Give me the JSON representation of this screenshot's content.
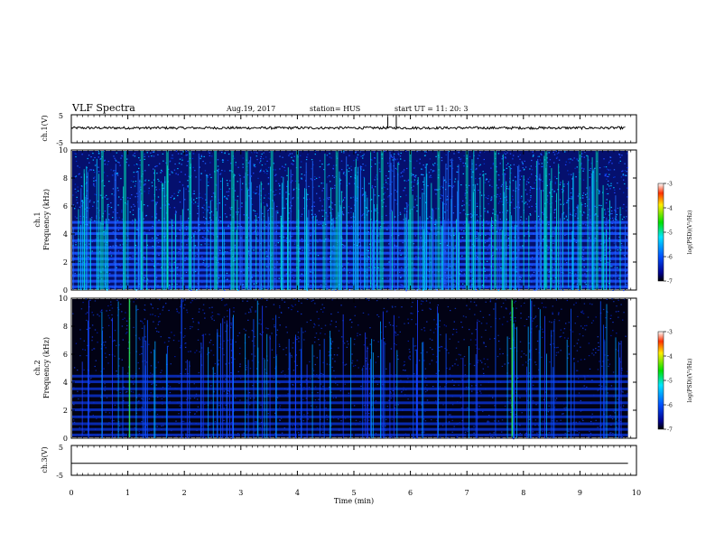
{
  "header": {
    "title": "VLF Spectra",
    "date": "Aug.19, 2017",
    "station": "station= HUS",
    "start": "start  UT =   11: 20: 3"
  },
  "chart_data": [
    {
      "type": "line",
      "name": "ch1-waveform",
      "ylabel": "ch.1(V)",
      "ylim": [
        -5,
        5
      ],
      "yticks": [
        "5",
        "-5"
      ],
      "xlim": [
        0,
        10
      ],
      "baseline": 0.3,
      "spikes": [
        {
          "x": 5.6,
          "y": 4.2
        },
        {
          "x": 5.75,
          "y": 4.8
        }
      ],
      "line_color": "#000000"
    },
    {
      "type": "heatmap",
      "name": "ch1-spectrogram",
      "ylabel": "ch.1\nFrequency (kHz)",
      "ylim": [
        0,
        10
      ],
      "yticks": [
        "0",
        "2",
        "4",
        "6",
        "8",
        "10"
      ],
      "xlim": [
        0,
        9.85
      ],
      "colorbar": {
        "label": "log(PSD)(V²/Hz)",
        "min": -7,
        "max": -3,
        "ticks": [
          "-3",
          "-4",
          "-5",
          "-6",
          "-7"
        ]
      },
      "bands_khz": [
        0.2,
        0.6,
        1.0,
        1.4,
        1.8,
        2.2,
        2.6,
        3.0,
        3.5,
        4.0,
        4.4,
        4.8
      ],
      "bright_columns_min": [
        0.55,
        0.95,
        1.25,
        1.7,
        2.1,
        2.55,
        2.85,
        3.1,
        3.55,
        4.0,
        4.7,
        5.5,
        6.0,
        6.5,
        7.0,
        7.5,
        8.4,
        9.0,
        9.3
      ]
    },
    {
      "type": "heatmap",
      "name": "ch2-spectrogram",
      "ylabel": "ch.2\nFrequency (kHz)",
      "ylim": [
        0,
        10
      ],
      "yticks": [
        "0",
        "2",
        "4",
        "6",
        "8",
        "10"
      ],
      "xlim": [
        0,
        9.85
      ],
      "colorbar": {
        "label": "log(PSD)(V²/Hz)",
        "min": -7,
        "max": -3,
        "ticks": [
          "-3",
          "-4",
          "-5",
          "-6",
          "-7"
        ]
      },
      "bands_khz": [
        0.2,
        0.6,
        1.0,
        1.5,
        2.0,
        2.5,
        3.0,
        3.5,
        4.0,
        4.4
      ],
      "bright_columns_min": [
        1.03,
        7.8
      ]
    },
    {
      "type": "line",
      "name": "ch3-waveform",
      "ylabel": "ch.3(V)",
      "ylim": [
        -5,
        5
      ],
      "yticks": [
        "5",
        "-5"
      ],
      "xlim": [
        0,
        10
      ],
      "baseline": -1.0,
      "line_color": "#000000"
    }
  ],
  "xaxis": {
    "label": "Time  (min)",
    "ticks": [
      "0",
      "1",
      "2",
      "3",
      "4",
      "5",
      "6",
      "7",
      "8",
      "9",
      "10"
    ],
    "range": [
      0,
      10
    ]
  }
}
